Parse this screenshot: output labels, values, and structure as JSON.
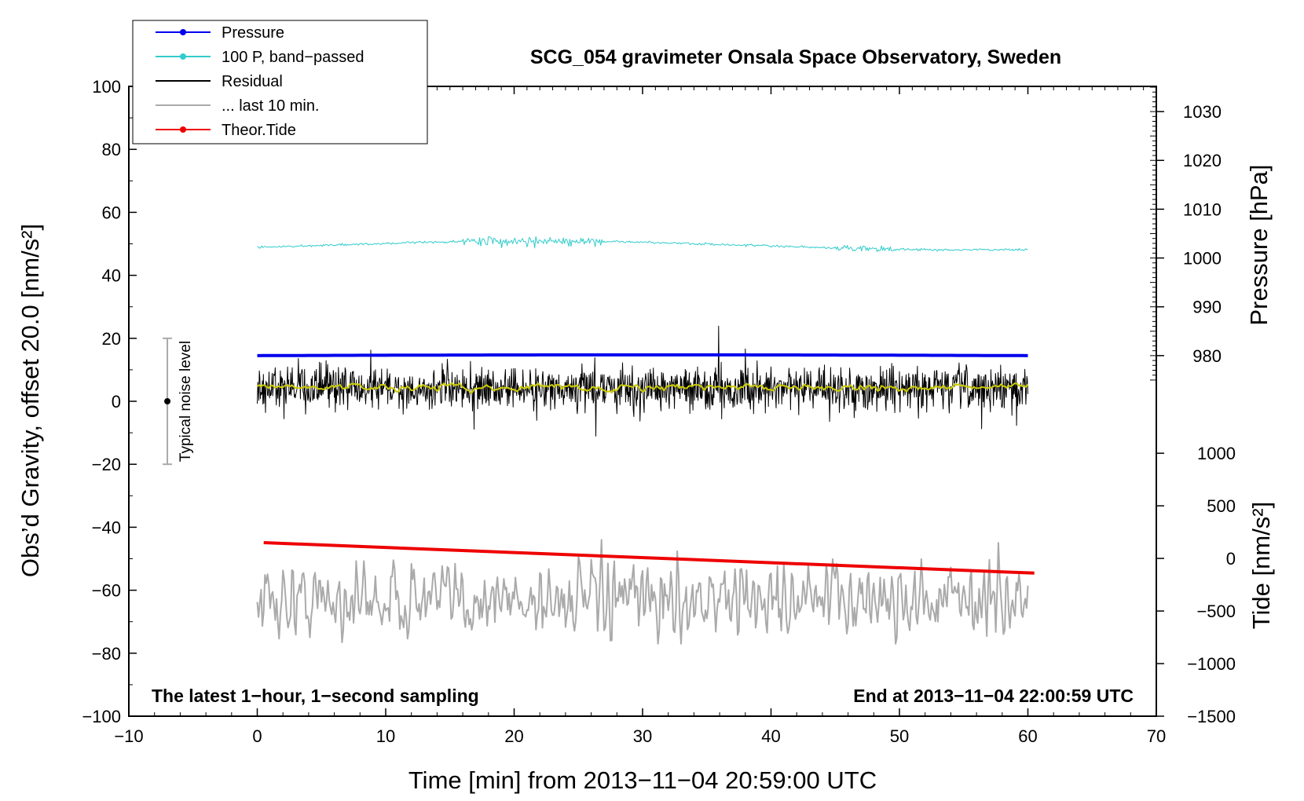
{
  "chart_data": {
    "type": "line",
    "title": "SCG_054 gravimeter Onsala Space Observatory, Sweden",
    "xlabel": "Time [min] from 2013−11−04 20:59:00 UTC",
    "ylabel_left": "Obs’d Gravity, offset 20.0 [nm/s²]",
    "ylabel_pressure": "Pressure [hPa]",
    "ylabel_tide": "Tide [nm/s²]",
    "xlim": [
      -10,
      70
    ],
    "ylim_left": [
      -100,
      100
    ],
    "x_ticks": [
      {
        "value": -10,
        "label": "−10"
      },
      {
        "value": 0,
        "label": "0"
      },
      {
        "value": 10,
        "label": "10"
      },
      {
        "value": 20,
        "label": "20"
      },
      {
        "value": 30,
        "label": "30"
      },
      {
        "value": 40,
        "label": "40"
      },
      {
        "value": 50,
        "label": "50"
      },
      {
        "value": 60,
        "label": "60"
      },
      {
        "value": 70,
        "label": "70"
      }
    ],
    "y_ticks_left": [
      {
        "value": 100,
        "label": "100"
      },
      {
        "value": 80,
        "label": "80"
      },
      {
        "value": 60,
        "label": "60"
      },
      {
        "value": 40,
        "label": "40"
      },
      {
        "value": 20,
        "label": "20"
      },
      {
        "value": 0,
        "label": "0"
      },
      {
        "value": -20,
        "label": "−20"
      },
      {
        "value": -40,
        "label": "−40"
      },
      {
        "value": -60,
        "label": "−60"
      },
      {
        "value": -80,
        "label": "−80"
      },
      {
        "value": -100,
        "label": "−100"
      }
    ],
    "pressure_axis": {
      "range_at_left_scale": {
        "left_at_1030": 92,
        "left_at_980": 14.5
      },
      "ticks": [
        {
          "value": 1030,
          "label": "1030"
        },
        {
          "value": 1020,
          "label": "1020"
        },
        {
          "value": 1010,
          "label": "1010"
        },
        {
          "value": 1000,
          "label": "1000"
        },
        {
          "value": 990,
          "label": "990"
        },
        {
          "value": 980,
          "label": "980"
        }
      ]
    },
    "tide_axis": {
      "range": [
        -1500,
        1000
      ],
      "left_at_1000": -16.5,
      "ticks": [
        {
          "value": 1000,
          "label": "1000"
        },
        {
          "value": 500,
          "label": "500"
        },
        {
          "value": 0,
          "label": "0"
        },
        {
          "value": -500,
          "label": "−500"
        },
        {
          "value": -1000,
          "label": "−1000"
        },
        {
          "value": -1500,
          "label": "−1500"
        }
      ]
    },
    "legend": [
      {
        "label": "Pressure",
        "color": "#0000ee",
        "marker": true
      },
      {
        "label": "100 P, band−passed",
        "color": "#33cccc",
        "marker": true
      },
      {
        "label": "Residual",
        "color": "#000000",
        "marker": false
      },
      {
        "label": "... last 10 min.",
        "color": "#aaaaaa",
        "marker": false
      },
      {
        "label": "Theor.Tide",
        "color": "#ee0000",
        "marker": true
      }
    ],
    "series": [
      {
        "name": "Pressure",
        "unit": "hPa",
        "color": "#0000ee",
        "x_range": [
          0,
          60
        ],
        "approx_value": 979.5,
        "plotted_level_left": 14.5
      },
      {
        "name": "100 P, band−passed",
        "color": "#33cccc",
        "x_range": [
          0,
          60
        ],
        "plotted_level_left": 49.5,
        "approx_amplitude": 2
      },
      {
        "name": "Residual",
        "color": "#000000",
        "x_range": [
          0,
          60
        ],
        "center_left": 4,
        "approx_range_left": [
          -13,
          24
        ]
      },
      {
        "name": "running mean",
        "color": "#cccc00",
        "x_range": [
          0,
          60
        ],
        "plotted_level_left": 4.5
      },
      {
        "name": "... last 10 min.",
        "color": "#aaaaaa",
        "x_range": [
          0,
          60
        ],
        "center_left": -63,
        "approx_range_left": [
          -77,
          -44
        ]
      },
      {
        "name": "Theor.Tide",
        "unit": "nm/s²",
        "color": "#ee0000",
        "points": [
          {
            "x": 0.5,
            "tide": 150
          },
          {
            "x": 60.5,
            "tide": -140
          }
        ]
      }
    ],
    "noise_level": {
      "label": "Typical noise level",
      "x": -7,
      "center": 0,
      "low": -20,
      "high": 20
    },
    "annotations": {
      "bottom_left": "The latest 1−hour, 1−second sampling",
      "bottom_right": "End at 2013−11−04 22:00:59 UTC"
    },
    "grid": false,
    "legend_position": "top-left"
  }
}
